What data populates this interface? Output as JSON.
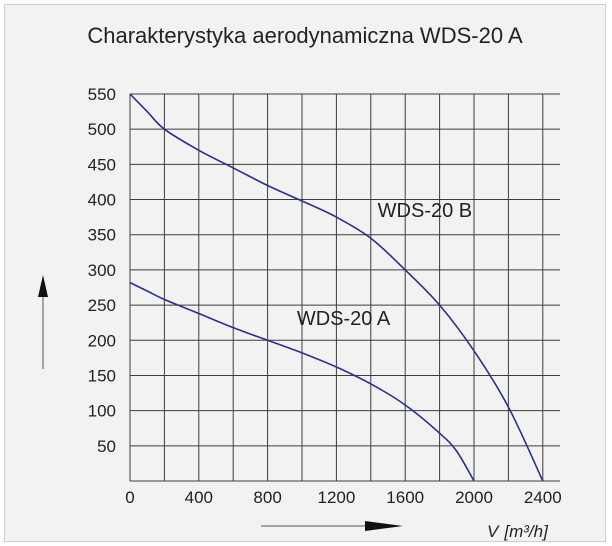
{
  "chart_data": {
    "type": "line",
    "title": "Charakterystyka aerodynamiczna  WDS-20 A",
    "xlabel": "V",
    "xunit": "[m³/h]",
    "ylabel": "",
    "xlim": [
      0,
      2500
    ],
    "ylim": [
      0,
      550
    ],
    "xgrid": [
      0,
      200,
      400,
      600,
      800,
      1000,
      1200,
      1400,
      1600,
      1800,
      2000,
      2200,
      2400
    ],
    "ygrid": [
      0,
      50,
      100,
      150,
      200,
      250,
      300,
      350,
      400,
      450,
      500,
      550
    ],
    "xticks": [
      0,
      400,
      800,
      1200,
      1600,
      2000,
      2400
    ],
    "yticks": [
      50,
      100,
      150,
      200,
      250,
      300,
      350,
      400,
      450,
      500,
      550
    ],
    "grid": true,
    "line_color": "#2b2f8f",
    "series": [
      {
        "name": "WDS-20 B",
        "x": [
          0,
          100,
          200,
          400,
          600,
          800,
          1000,
          1200,
          1400,
          1600,
          1800,
          2000,
          2200,
          2400
        ],
        "y": [
          550,
          525,
          500,
          470,
          445,
          420,
          398,
          375,
          345,
          300,
          250,
          185,
          105,
          0
        ]
      },
      {
        "name": "WDS-20 A",
        "x": [
          0,
          100,
          200,
          400,
          600,
          800,
          1000,
          1200,
          1400,
          1600,
          1800,
          1900,
          2000
        ],
        "y": [
          282,
          270,
          258,
          238,
          218,
          200,
          182,
          162,
          138,
          108,
          68,
          42,
          0
        ]
      }
    ]
  }
}
